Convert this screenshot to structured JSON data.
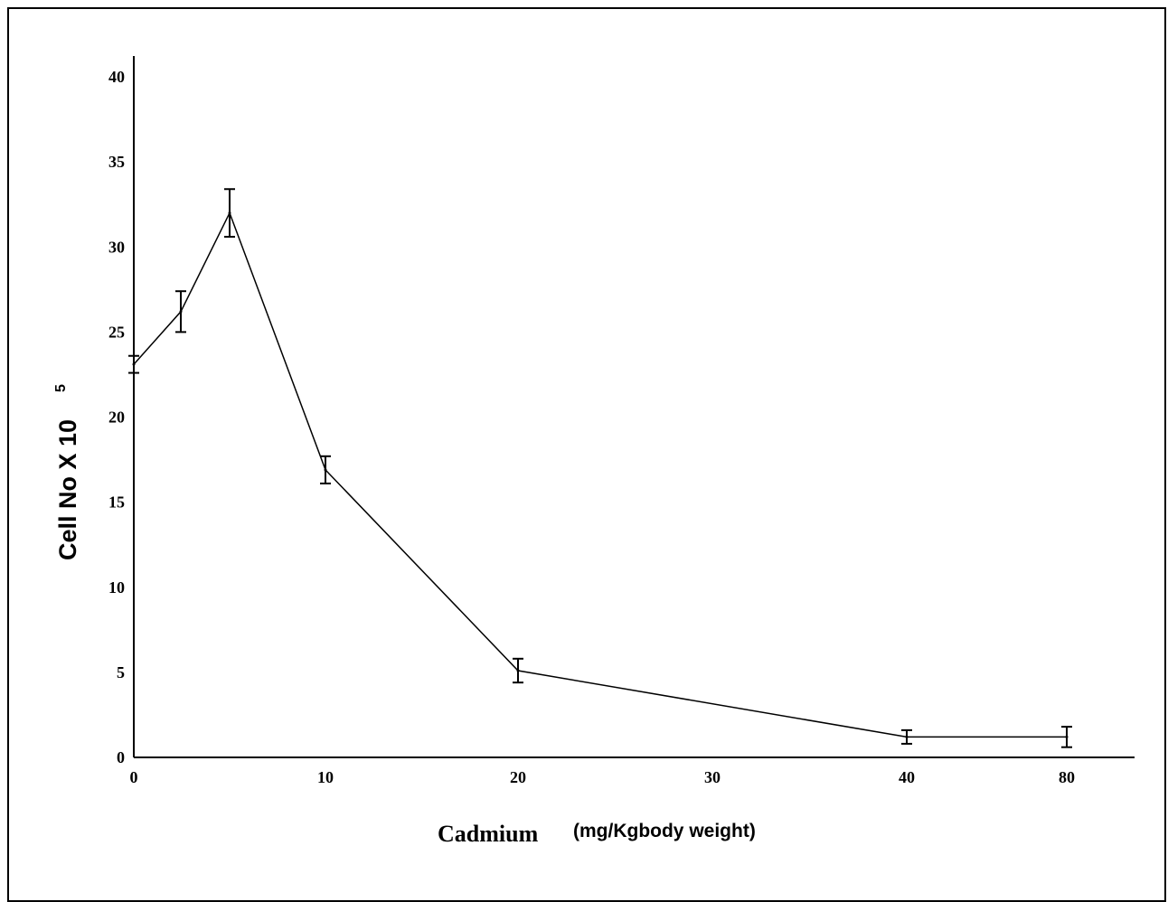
{
  "chart_data": {
    "type": "line",
    "x_categories": [
      "0",
      "2.5",
      "5",
      "10",
      "20",
      "40",
      "80"
    ],
    "x_tick_labels": [
      "0",
      "10",
      "20",
      "30",
      "40",
      "80"
    ],
    "series": [
      {
        "values": [
          23.1,
          26.2,
          32.0,
          16.9,
          5.1,
          1.2,
          1.2
        ],
        "errors": [
          0.5,
          1.2,
          1.4,
          0.8,
          0.7,
          0.4,
          0.6
        ]
      }
    ],
    "y_ticks": [
      "0",
      "5",
      "10",
      "15",
      "20",
      "25",
      "30",
      "35",
      "40"
    ],
    "ylim": [
      0,
      40
    ],
    "ylabel_main": "Cell No X 10",
    "ylabel_sup": "5",
    "xlabel_main": "Cadmium",
    "xlabel_unit": "(mg/Kgbody weight)",
    "grid": false,
    "legend": "none",
    "line_color": "#000000"
  }
}
